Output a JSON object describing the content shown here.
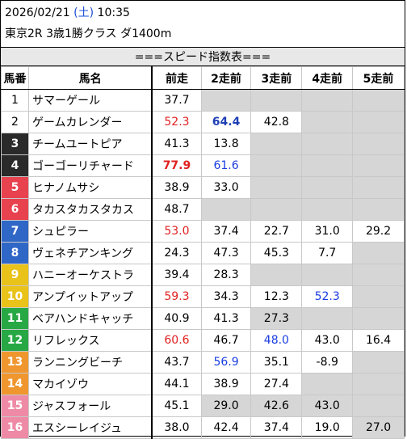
{
  "header": {
    "date": "2026/02/21",
    "dow_open": "(",
    "dow": "土",
    "dow_close": ")",
    "time": "10:35",
    "race": "東京2R 3歳1勝クラス ダ1400m"
  },
  "title": "===スピード指数表===",
  "columns": [
    "馬番",
    "馬名",
    "前走",
    "2走前",
    "3走前",
    "4走前",
    "5走前"
  ],
  "rows": [
    {
      "no": "1",
      "name": "サマーゲール",
      "color": "#ffffff",
      "text": "#000000",
      "v": [
        "37.7",
        "",
        "",
        "",
        ""
      ],
      "gray": [
        false,
        true,
        true,
        true,
        true
      ],
      "style": [
        "",
        "",
        "",
        "",
        ""
      ]
    },
    {
      "no": "2",
      "name": "ゲームカレンダー",
      "color": "#ffffff",
      "text": "#000000",
      "v": [
        "52.3",
        "64.4",
        "42.8",
        "",
        ""
      ],
      "gray": [
        false,
        false,
        false,
        true,
        true
      ],
      "style": [
        "red",
        "navy bold",
        "",
        "",
        ""
      ]
    },
    {
      "no": "3",
      "name": "チームユートピア",
      "color": "#2a2a2a",
      "text": "#ffffff",
      "v": [
        "41.3",
        "13.8",
        "",
        "",
        ""
      ],
      "gray": [
        false,
        false,
        true,
        true,
        true
      ],
      "style": [
        "",
        "",
        "",
        "",
        ""
      ]
    },
    {
      "no": "4",
      "name": "ゴーゴーリチャード",
      "color": "#2a2a2a",
      "text": "#ffffff",
      "v": [
        "77.9",
        "61.6",
        "",
        "",
        ""
      ],
      "gray": [
        false,
        false,
        true,
        true,
        true
      ],
      "style": [
        "red bold",
        "blue",
        "",
        "",
        ""
      ]
    },
    {
      "no": "5",
      "name": "ヒナノムサシ",
      "color": "#e8424f",
      "text": "#ffffff",
      "v": [
        "38.9",
        "33.0",
        "",
        "",
        ""
      ],
      "gray": [
        false,
        false,
        true,
        true,
        true
      ],
      "style": [
        "",
        "",
        "",
        "",
        ""
      ]
    },
    {
      "no": "6",
      "name": "タカスタカスタカス",
      "color": "#e8424f",
      "text": "#ffffff",
      "v": [
        "48.7",
        "",
        "",
        "",
        ""
      ],
      "gray": [
        false,
        true,
        true,
        true,
        true
      ],
      "style": [
        "",
        "",
        "",
        "",
        ""
      ]
    },
    {
      "no": "7",
      "name": "シュピラー",
      "color": "#2f67c7",
      "text": "#ffffff",
      "v": [
        "53.0",
        "37.4",
        "22.7",
        "31.0",
        "29.2"
      ],
      "gray": [
        false,
        false,
        false,
        false,
        false
      ],
      "style": [
        "red",
        "",
        "",
        "",
        ""
      ]
    },
    {
      "no": "8",
      "name": "ヴェネチアンキング",
      "color": "#2f67c7",
      "text": "#ffffff",
      "v": [
        "24.3",
        "47.3",
        "45.3",
        "7.7",
        ""
      ],
      "gray": [
        false,
        false,
        false,
        false,
        true
      ],
      "style": [
        "",
        "",
        "",
        "",
        ""
      ]
    },
    {
      "no": "9",
      "name": "ハニーオーケストラ",
      "color": "#e9c21a",
      "text": "#ffffff",
      "v": [
        "39.4",
        "28.3",
        "",
        "",
        ""
      ],
      "gray": [
        false,
        false,
        true,
        true,
        true
      ],
      "style": [
        "",
        "",
        "",
        "",
        ""
      ]
    },
    {
      "no": "10",
      "name": "アンプイットアップ",
      "color": "#e9c21a",
      "text": "#ffffff",
      "v": [
        "59.3",
        "34.3",
        "12.3",
        "52.3",
        ""
      ],
      "gray": [
        false,
        false,
        false,
        false,
        true
      ],
      "style": [
        "red",
        "",
        "",
        "blue",
        ""
      ]
    },
    {
      "no": "11",
      "name": "ベアハンドキャッチ",
      "color": "#27a844",
      "text": "#ffffff",
      "v": [
        "40.9",
        "41.3",
        "27.3",
        "",
        ""
      ],
      "gray": [
        false,
        false,
        true,
        true,
        true
      ],
      "style": [
        "",
        "",
        "",
        "",
        ""
      ]
    },
    {
      "no": "12",
      "name": "リフレックス",
      "color": "#27a844",
      "text": "#ffffff",
      "v": [
        "60.6",
        "46.7",
        "48.0",
        "43.0",
        "16.4"
      ],
      "gray": [
        false,
        false,
        false,
        false,
        false
      ],
      "style": [
        "red",
        "",
        "blue",
        "",
        ""
      ]
    },
    {
      "no": "13",
      "name": "ランニングビーチ",
      "color": "#f0962e",
      "text": "#ffffff",
      "v": [
        "43.7",
        "56.9",
        "35.1",
        "-8.9",
        ""
      ],
      "gray": [
        false,
        false,
        false,
        false,
        true
      ],
      "style": [
        "",
        "blue",
        "",
        "",
        ""
      ]
    },
    {
      "no": "14",
      "name": "マカイゾウ",
      "color": "#f0962e",
      "text": "#ffffff",
      "v": [
        "44.1",
        "38.9",
        "27.4",
        "",
        ""
      ],
      "gray": [
        false,
        false,
        false,
        true,
        true
      ],
      "style": [
        "",
        "",
        "",
        "",
        ""
      ]
    },
    {
      "no": "15",
      "name": "ジャスフォール",
      "color": "#ee8aa6",
      "text": "#ffffff",
      "v": [
        "45.1",
        "29.0",
        "42.6",
        "43.0",
        ""
      ],
      "gray": [
        false,
        true,
        true,
        true,
        true
      ],
      "style": [
        "",
        "",
        "",
        "",
        ""
      ]
    },
    {
      "no": "16",
      "name": "エスシーレイジュ",
      "color": "#ee8aa6",
      "text": "#ffffff",
      "v": [
        "38.0",
        "42.4",
        "37.4",
        "19.0",
        "27.0"
      ],
      "gray": [
        false,
        false,
        false,
        false,
        true
      ],
      "style": [
        "",
        "",
        "",
        "",
        ""
      ]
    }
  ]
}
